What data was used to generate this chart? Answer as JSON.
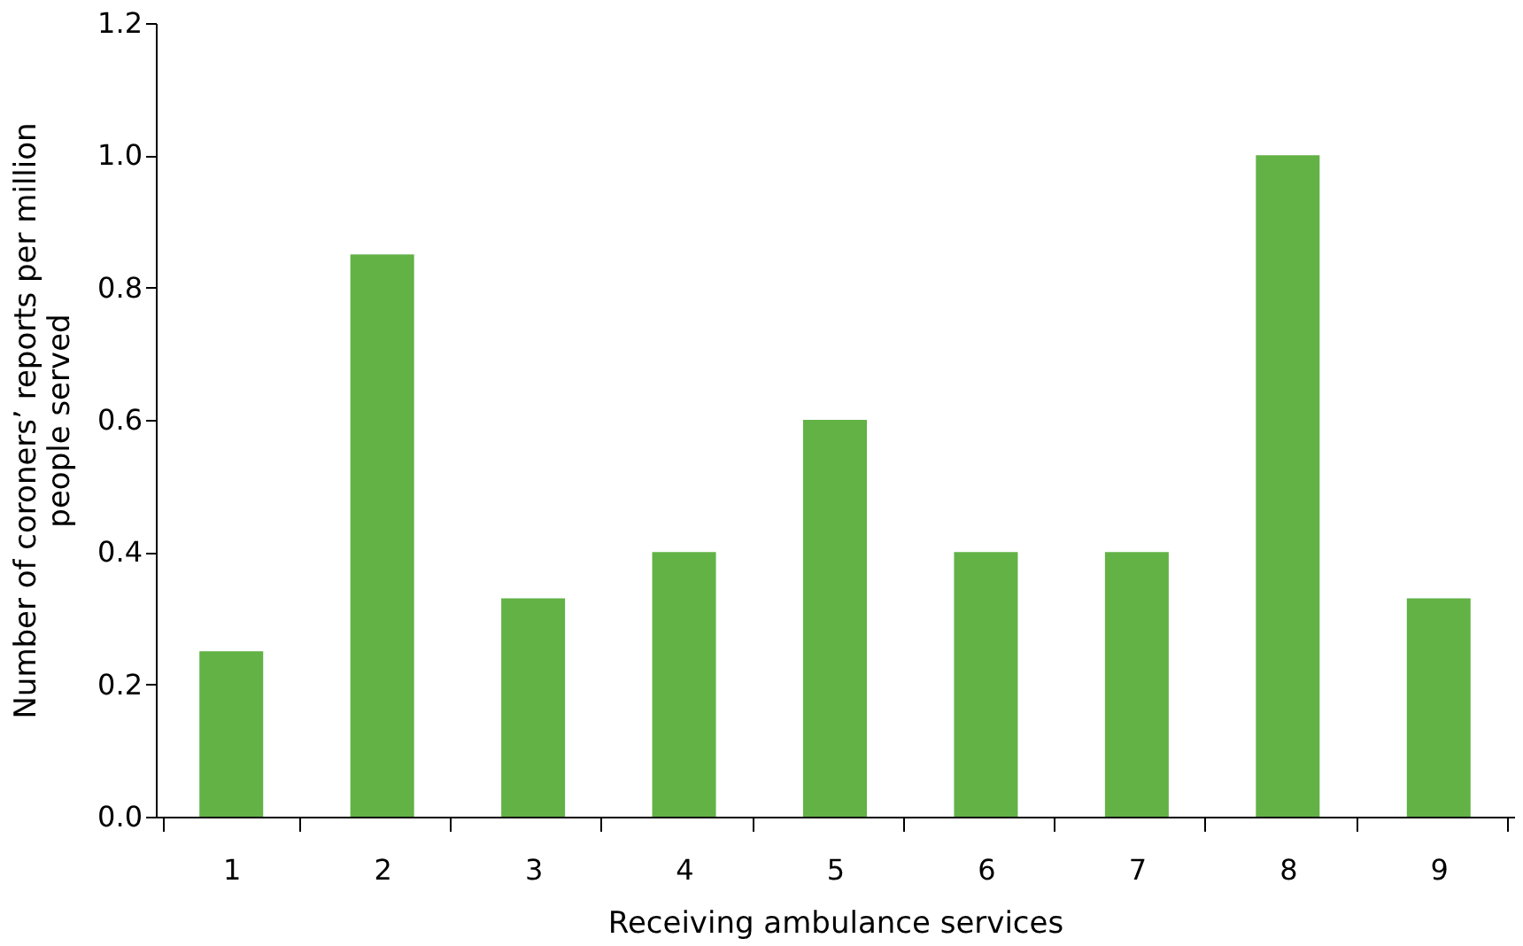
{
  "chart_data": {
    "type": "bar",
    "xlabel": "Receiving ambulance services",
    "ylabel": "Number of coroners’ reports per million people served",
    "categories": [
      "1",
      "2",
      "3",
      "4",
      "5",
      "6",
      "7",
      "8",
      "9"
    ],
    "values": [
      0.25,
      0.85,
      0.33,
      0.4,
      0.6,
      0.4,
      0.4,
      1.0,
      0.33
    ],
    "color": "#62b246",
    "ylim": [
      0,
      1.2
    ],
    "yticks": [
      {
        "value": 0,
        "label": "0.0"
      },
      0.2,
      0.4,
      0.6,
      0.8,
      {
        "value": 1,
        "label": "1.0"
      },
      1.2
    ],
    "grid": false
  }
}
